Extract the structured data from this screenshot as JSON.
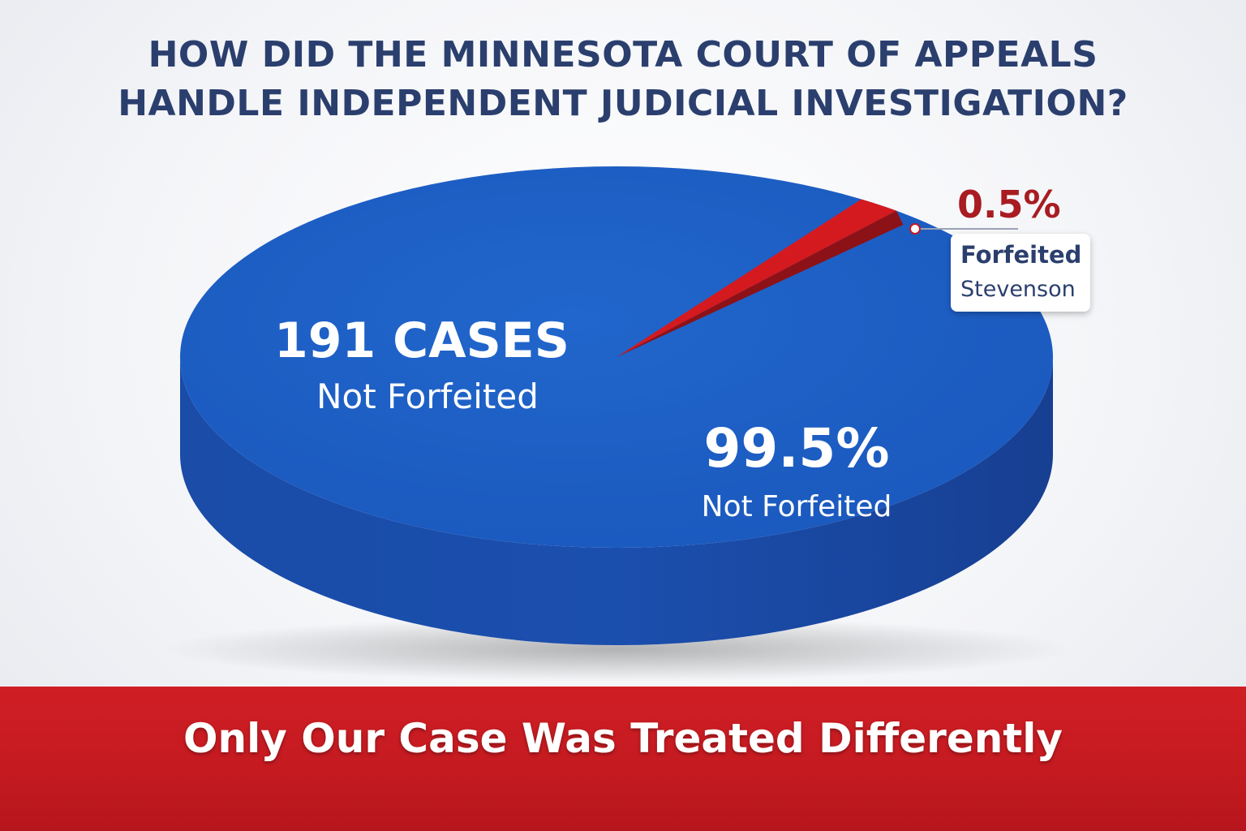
{
  "title_lines": [
    "HOW DID THE MINNESOTA COURT OF APPEALS",
    "HANDLE INDEPENDENT JUDICIAL INVESTIGATION?"
  ],
  "chart_data": {
    "type": "pie",
    "title": "HOW DID THE MINNESOTA COURT OF APPEALS HANDLE INDEPENDENT JUDICIAL INVESTIGATION?",
    "slices": [
      {
        "label": "Not Forfeited",
        "value": 99.5,
        "value_text": "99.5%",
        "count_text": "191 CASES",
        "count_sub": "Not Forfeited",
        "color": "#1d5fc4"
      },
      {
        "label": "Forfeited",
        "sublabel": "Stevenson",
        "value": 0.5,
        "value_text": "0.5%",
        "color": "#d41a1f"
      }
    ]
  },
  "banner": {
    "text": "Only Our Case Was Treated Differently",
    "color": "#c81d23"
  },
  "colors": {
    "title": "#2b3f6e",
    "pie_top": "#1d5fc4",
    "pie_side": "#1848a3",
    "slice_red": "#d41a1f",
    "callout_red": "#a81c22"
  }
}
